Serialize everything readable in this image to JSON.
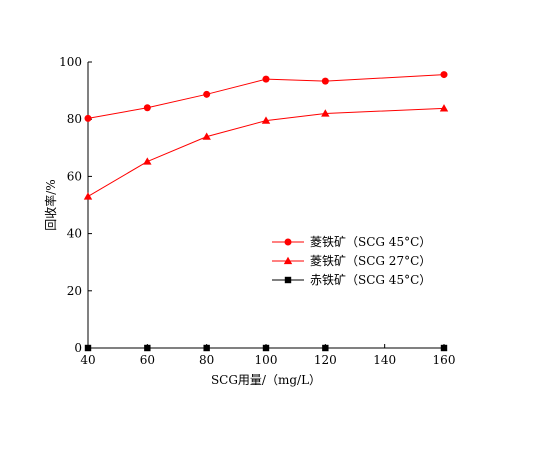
{
  "chart_data": {
    "type": "line",
    "title": "",
    "xlabel": "SCG用量/（mg/L）",
    "ylabel": "回收率/%",
    "xlim": [
      40,
      160
    ],
    "ylim": [
      0,
      100
    ],
    "xticks": [
      40,
      60,
      80,
      100,
      120,
      140,
      160
    ],
    "yticks": [
      0,
      20,
      40,
      60,
      80,
      100
    ],
    "grid": false,
    "legend_position": "center-right",
    "series": [
      {
        "name": "菱铁矿（SCG 45°C）",
        "color": "#ff0000",
        "marker": "circle",
        "x": [
          40,
          60,
          80,
          100,
          120,
          160
        ],
        "y": [
          80.3,
          84.0,
          88.7,
          94.0,
          93.3,
          95.6
        ]
      },
      {
        "name": "菱铁矿（SCG 27°C）",
        "color": "#ff0000",
        "marker": "triangle",
        "x": [
          40,
          60,
          80,
          100,
          120,
          160
        ],
        "y": [
          53.0,
          65.2,
          73.9,
          79.5,
          82.0,
          83.8
        ]
      },
      {
        "name": "赤铁矿（SCG 45°C）",
        "color": "#000000",
        "marker": "square",
        "x": [
          40,
          60,
          80,
          100,
          120,
          160
        ],
        "y": [
          0,
          0,
          0,
          0,
          0,
          0
        ]
      }
    ]
  }
}
